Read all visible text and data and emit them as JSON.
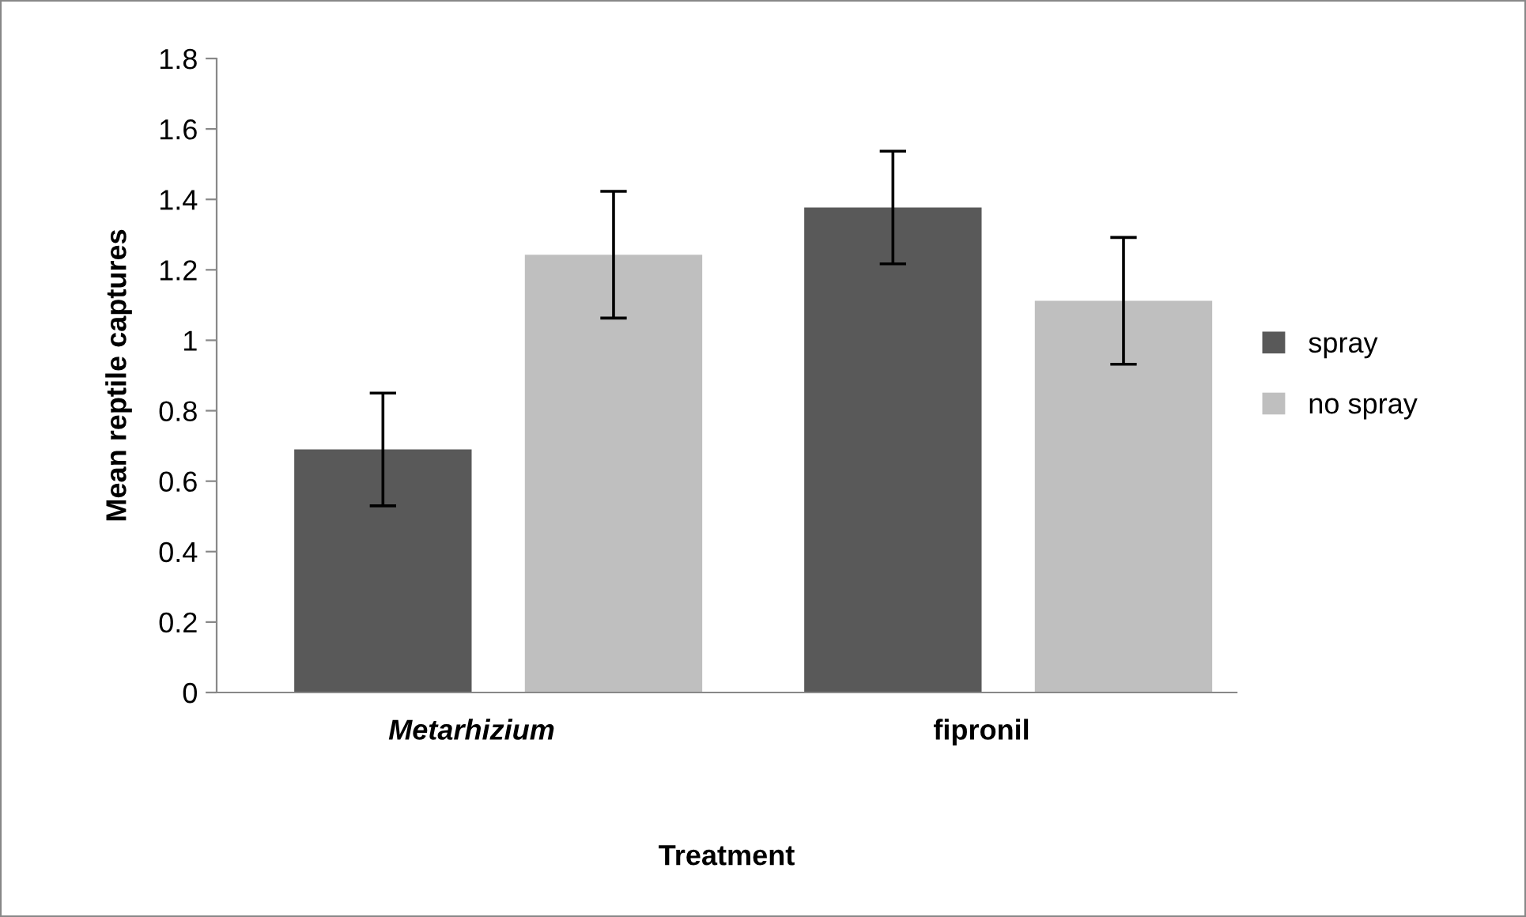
{
  "chart_data": {
    "type": "bar",
    "xlabel": "Treatment",
    "ylabel": "Mean reptile captures",
    "categories": [
      "Metarhizium",
      "fipronil"
    ],
    "series": [
      {
        "name": "spray",
        "color": "#595959",
        "values": [
          0.69,
          1.377
        ],
        "errors": [
          0.16,
          0.16
        ]
      },
      {
        "name": "no spray",
        "color": "#bfbfbf",
        "values": [
          1.243,
          1.112
        ],
        "errors": [
          0.18,
          0.18
        ]
      }
    ],
    "ylim": [
      0,
      1.8
    ],
    "yticks": [
      0,
      0.2,
      0.4,
      0.6,
      0.8,
      1,
      1.2,
      1.4,
      1.6,
      1.8
    ],
    "grid": false,
    "legend": "right"
  }
}
